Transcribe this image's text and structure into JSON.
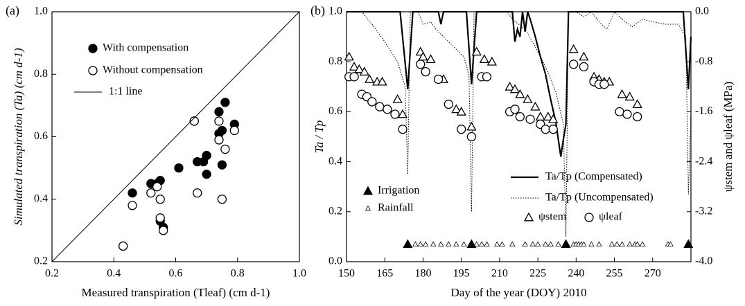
{
  "chart_data": [
    {
      "type": "scatter",
      "panel_label": "(a)",
      "x_label": "Measured transpiration (Tleaf) (cm d-1)",
      "y_label": "Simulated transpiration (Ta) (cm d-1)",
      "xlim": [
        0.2,
        1.0
      ],
      "ylim": [
        0.2,
        1.0
      ],
      "xticks": [
        0.2,
        0.4,
        0.6,
        0.8,
        {
          "value": 1,
          "label": "1.0"
        }
      ],
      "yticks": [
        0.2,
        0.4,
        0.6,
        0.8,
        {
          "value": 1,
          "label": "1.0"
        }
      ],
      "series": [
        {
          "name": "With compensation",
          "kind": "scatter",
          "marker": "circle",
          "filled": true,
          "color": "#000000",
          "x": [
            0.43,
            0.46,
            0.52,
            0.54,
            0.55,
            0.55,
            0.56,
            0.61,
            0.66,
            0.67,
            0.69,
            0.7,
            0.7,
            0.74,
            0.74,
            0.75,
            0.75,
            0.76,
            0.79
          ],
          "values": [
            0.25,
            0.42,
            0.45,
            0.45,
            0.46,
            0.33,
            0.31,
            0.5,
            0.65,
            0.52,
            0.52,
            0.54,
            0.48,
            0.68,
            0.61,
            0.62,
            0.51,
            0.71,
            0.64
          ]
        },
        {
          "name": "Without compensation",
          "kind": "scatter",
          "marker": "circle",
          "filled": false,
          "color": "#000000",
          "x": [
            0.43,
            0.46,
            0.52,
            0.54,
            0.55,
            0.55,
            0.56,
            0.67,
            0.66,
            0.74,
            0.74,
            0.75,
            0.76,
            0.79
          ],
          "values": [
            0.25,
            0.38,
            0.42,
            0.44,
            0.4,
            0.34,
            0.3,
            0.42,
            0.65,
            0.59,
            0.65,
            0.4,
            0.56,
            0.62
          ]
        },
        {
          "name": "1:1 line",
          "kind": "line",
          "style": "solid",
          "color": "#000000",
          "x": [
            0.2,
            1.0
          ],
          "values": [
            0.2,
            1.0
          ]
        }
      ]
    },
    {
      "type": "line",
      "panel_label": "(b)",
      "x_label": "Day of the year (DOY) 2010",
      "y_label": "Ta / Tp",
      "y2_label": "ψstem and ψleaf (MPa)",
      "xlim": [
        150,
        285
      ],
      "ylim": [
        0,
        1.0
      ],
      "y2lim": [
        -4.0,
        0
      ],
      "xticks": [
        150,
        165,
        180,
        195,
        210,
        225,
        240,
        255,
        270
      ],
      "yticks": [
        {
          "value": 0,
          "label": "0.0"
        },
        0.2,
        0.4,
        0.6,
        0.8,
        {
          "value": 1,
          "label": "1.0"
        }
      ],
      "y2ticks": [
        {
          "value": 0,
          "label": "0.0"
        },
        -0.8,
        -1.6,
        -2.4,
        -3.2,
        {
          "value": -4,
          "label": "-4.0"
        }
      ],
      "series": [
        {
          "name": "Irrigation",
          "kind": "scatter",
          "marker": "triangle",
          "filled": true,
          "color": "#000000",
          "x": [
            174,
            199,
            236,
            284
          ],
          "values": [
            0.07,
            0.07,
            0.07,
            0.07
          ]
        },
        {
          "name": "Rainfall",
          "kind": "scatter",
          "marker": "small-triangle",
          "filled": false,
          "color": "#000000",
          "x": [
            177,
            179,
            181,
            184,
            187,
            190,
            193,
            196,
            201,
            203,
            205,
            209,
            211,
            215,
            220,
            223,
            225,
            228,
            230,
            233,
            239,
            240,
            241,
            242,
            243,
            246,
            249,
            254,
            256,
            258,
            261,
            263,
            264,
            266,
            276,
            277
          ],
          "values": [
            0.07,
            0.07,
            0.07,
            0.07,
            0.07,
            0.07,
            0.07,
            0.07,
            0.07,
            0.07,
            0.07,
            0.07,
            0.07,
            0.07,
            0.07,
            0.07,
            0.07,
            0.07,
            0.07,
            0.07,
            0.07,
            0.07,
            0.07,
            0.07,
            0.07,
            0.07,
            0.07,
            0.07,
            0.07,
            0.07,
            0.07,
            0.07,
            0.07,
            0.07,
            0.07,
            0.07
          ]
        },
        {
          "name": "Ta/Tp (Compensated)",
          "kind": "line",
          "style": "solid",
          "color": "#000000",
          "x": [
            150,
            171,
            174,
            176,
            186,
            187,
            188,
            197,
            199,
            201,
            215,
            216,
            217,
            218,
            219,
            220,
            221,
            222,
            224,
            226,
            228,
            230,
            232,
            234,
            235,
            236,
            237,
            282,
            284,
            285
          ],
          "values": [
            1,
            1,
            0.69,
            1,
            1,
            0.95,
            1,
            1,
            0.71,
            1,
            1,
            0.88,
            0.93,
            0.9,
            1,
            0.92,
            1,
            0.97,
            0.9,
            0.82,
            0.75,
            0.65,
            0.56,
            0.42,
            0.49,
            0.55,
            1,
            1,
            0.69,
            0.9
          ]
        },
        {
          "name": "Ta/Tp (Uncompensated)",
          "kind": "line",
          "style": "dotted",
          "color": "#000000",
          "x": [
            150,
            156,
            160,
            165,
            170,
            173,
            174,
            175,
            178,
            180,
            183,
            185,
            188,
            192,
            196,
            198,
            199,
            200,
            213,
            215,
            220,
            224,
            228,
            232,
            235,
            236,
            237,
            240,
            243,
            246,
            249,
            252,
            255,
            258,
            262,
            266,
            270,
            275,
            280,
            283,
            284,
            285
          ],
          "values": [
            1,
            1,
            0.95,
            0.88,
            0.8,
            0.7,
            0.35,
            1,
            1,
            0.95,
            0.96,
            0.93,
            0.9,
            0.86,
            0.82,
            0.75,
            0.2,
            1,
            1,
            0.97,
            0.93,
            0.86,
            0.78,
            0.68,
            0.55,
            0.1,
            1,
            1,
            0.98,
            1,
            0.96,
            0.93,
            1,
            0.97,
            0.94,
            0.97,
            0.96,
            0.95,
            0.95,
            0.9,
            0.27,
            0.6
          ]
        },
        {
          "name": "ψstem",
          "kind": "scatter",
          "marker": "triangle",
          "filled": false,
          "color": "#000000",
          "axis": "y2",
          "x": [
            151,
            153,
            155,
            157,
            159,
            162,
            164,
            170,
            172,
            179,
            180,
            183,
            188,
            193,
            195,
            199,
            201,
            204,
            207,
            214,
            216,
            218,
            221,
            224,
            226,
            229,
            231,
            239,
            243,
            247,
            249,
            251,
            253,
            258,
            261,
            264
          ],
          "values": [
            -0.72,
            -0.88,
            -0.92,
            -0.96,
            -1.08,
            -1.12,
            -1.12,
            -1.4,
            -1.64,
            -0.64,
            -0.72,
            -0.76,
            -1.08,
            -1.56,
            -1.6,
            -1.84,
            -0.64,
            -0.76,
            -0.8,
            -1.2,
            -1.24,
            -1.32,
            -1.4,
            -1.52,
            -1.68,
            -1.68,
            -1.72,
            -0.6,
            -0.72,
            -1.04,
            -1.08,
            -1.12,
            -1.12,
            -1.32,
            -1.36,
            -1.48
          ]
        },
        {
          "name": "ψleaf",
          "kind": "scatter",
          "marker": "circle",
          "filled": false,
          "color": "#000000",
          "axis": "y2",
          "x": [
            151,
            153,
            156,
            158,
            160,
            163,
            166,
            169,
            172,
            179,
            181,
            186,
            190,
            195,
            199,
            203,
            205,
            214,
            216,
            218,
            222,
            226,
            228,
            231,
            239,
            243,
            247,
            249,
            251,
            257,
            260,
            264
          ],
          "values": [
            -1.04,
            -1.04,
            -1.32,
            -1.36,
            -1.44,
            -1.52,
            -1.56,
            -1.64,
            -1.88,
            -0.84,
            -0.96,
            -1.08,
            -1.48,
            -1.88,
            -2.0,
            -1.04,
            -1.04,
            -1.6,
            -1.56,
            -1.68,
            -1.72,
            -1.8,
            -1.88,
            -1.88,
            -0.84,
            -0.88,
            -1.12,
            -1.16,
            -1.16,
            -1.6,
            -1.64,
            -1.68
          ]
        }
      ]
    }
  ]
}
